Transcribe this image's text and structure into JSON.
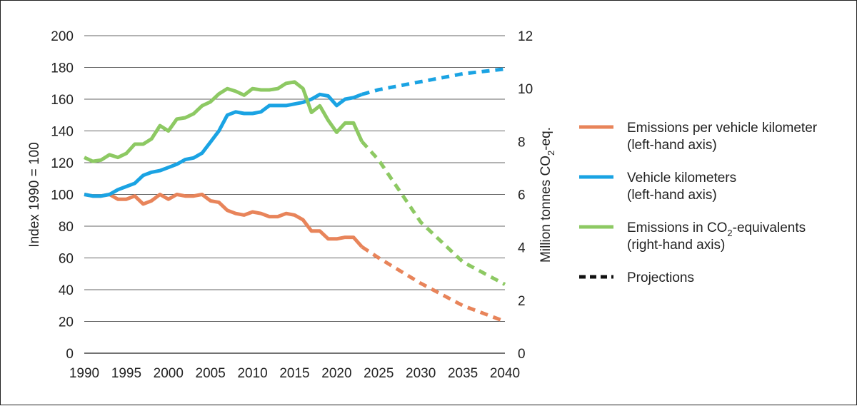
{
  "chart_data": {
    "type": "line",
    "x_axis": {
      "min": 1990,
      "max": 2040,
      "ticks": [
        1990,
        1995,
        2000,
        2005,
        2010,
        2015,
        2020,
        2025,
        2030,
        2035,
        2040
      ]
    },
    "y_left": {
      "label": "Index 1990 = 100",
      "min": 0,
      "max": 200,
      "ticks": [
        0,
        20,
        40,
        60,
        80,
        100,
        120,
        140,
        160,
        180,
        200
      ]
    },
    "y_right": {
      "label": "Million tonnes CO2-eq.",
      "label_parts": [
        "Million tonnes CO",
        "2",
        "-eq."
      ],
      "min": 0,
      "max": 12,
      "ticks": [
        0,
        2,
        4,
        6,
        8,
        10,
        12
      ]
    },
    "grid": "horizontal",
    "series": [
      {
        "id": "emissions_per_km",
        "name": "Emissions per vehicle kilometer (left-hand axis)",
        "axis": "left",
        "color": "#E8845A",
        "historical": [
          [
            1990,
            100
          ],
          [
            1991,
            99
          ],
          [
            1992,
            99
          ],
          [
            1993,
            100
          ],
          [
            1994,
            97
          ],
          [
            1995,
            97
          ],
          [
            1996,
            99
          ],
          [
            1997,
            94
          ],
          [
            1998,
            96
          ],
          [
            1999,
            100
          ],
          [
            2000,
            97
          ],
          [
            2001,
            100
          ],
          [
            2002,
            99
          ],
          [
            2003,
            99
          ],
          [
            2004,
            100
          ],
          [
            2005,
            96
          ],
          [
            2006,
            95
          ],
          [
            2007,
            90
          ],
          [
            2008,
            88
          ],
          [
            2009,
            87
          ],
          [
            2010,
            89
          ],
          [
            2011,
            88
          ],
          [
            2012,
            86
          ],
          [
            2013,
            86
          ],
          [
            2014,
            88
          ],
          [
            2015,
            87
          ],
          [
            2016,
            84
          ],
          [
            2017,
            77
          ],
          [
            2018,
            77
          ],
          [
            2019,
            72
          ],
          [
            2020,
            72
          ],
          [
            2021,
            73
          ],
          [
            2022,
            73
          ],
          [
            2023,
            67
          ]
        ],
        "projection": [
          [
            2023,
            67
          ],
          [
            2025,
            60
          ],
          [
            2030,
            44
          ],
          [
            2035,
            30
          ],
          [
            2040,
            20
          ]
        ]
      },
      {
        "id": "vehicle_km",
        "name": "Vehicle kilometers (left-hand axis)",
        "axis": "left",
        "color": "#1AA3E3",
        "historical": [
          [
            1990,
            100
          ],
          [
            1991,
            99
          ],
          [
            1992,
            99
          ],
          [
            1993,
            100
          ],
          [
            1994,
            103
          ],
          [
            1995,
            105
          ],
          [
            1996,
            107
          ],
          [
            1997,
            112
          ],
          [
            1998,
            114
          ],
          [
            1999,
            115
          ],
          [
            2000,
            117
          ],
          [
            2001,
            119
          ],
          [
            2002,
            122
          ],
          [
            2003,
            123
          ],
          [
            2004,
            126
          ],
          [
            2005,
            133
          ],
          [
            2006,
            140
          ],
          [
            2007,
            150
          ],
          [
            2008,
            152
          ],
          [
            2009,
            151
          ],
          [
            2010,
            151
          ],
          [
            2011,
            152
          ],
          [
            2012,
            156
          ],
          [
            2013,
            156
          ],
          [
            2014,
            156
          ],
          [
            2015,
            157
          ],
          [
            2016,
            158
          ],
          [
            2017,
            160
          ],
          [
            2018,
            163
          ],
          [
            2019,
            162
          ],
          [
            2020,
            156
          ],
          [
            2021,
            160
          ],
          [
            2022,
            161
          ],
          [
            2023,
            163
          ]
        ],
        "projection": [
          [
            2023,
            163
          ],
          [
            2025,
            166
          ],
          [
            2030,
            171
          ],
          [
            2035,
            176
          ],
          [
            2040,
            179
          ]
        ]
      },
      {
        "id": "emissions_co2",
        "name": "Emissions in CO2-equivalents (right-hand axis)",
        "axis": "right",
        "color": "#8DC963",
        "historical": [
          [
            1990,
            7.4
          ],
          [
            1991,
            7.25
          ],
          [
            1992,
            7.3
          ],
          [
            1993,
            7.5
          ],
          [
            1994,
            7.4
          ],
          [
            1995,
            7.55
          ],
          [
            1996,
            7.9
          ],
          [
            1997,
            7.9
          ],
          [
            1998,
            8.1
          ],
          [
            1999,
            8.6
          ],
          [
            2000,
            8.4
          ],
          [
            2001,
            8.85
          ],
          [
            2002,
            8.9
          ],
          [
            2003,
            9.05
          ],
          [
            2004,
            9.35
          ],
          [
            2005,
            9.5
          ],
          [
            2006,
            9.8
          ],
          [
            2007,
            10.0
          ],
          [
            2008,
            9.9
          ],
          [
            2009,
            9.75
          ],
          [
            2010,
            10.0
          ],
          [
            2011,
            9.95
          ],
          [
            2012,
            9.95
          ],
          [
            2013,
            10.0
          ],
          [
            2014,
            10.2
          ],
          [
            2015,
            10.25
          ],
          [
            2016,
            10.0
          ],
          [
            2017,
            9.1
          ],
          [
            2018,
            9.35
          ],
          [
            2019,
            8.8
          ],
          [
            2020,
            8.35
          ],
          [
            2021,
            8.7
          ],
          [
            2022,
            8.7
          ],
          [
            2023,
            8.0
          ]
        ],
        "projection": [
          [
            2023,
            8.0
          ],
          [
            2025,
            7.3
          ],
          [
            2030,
            4.95
          ],
          [
            2035,
            3.45
          ],
          [
            2040,
            2.6
          ]
        ]
      }
    ],
    "legend": {
      "placement": "right",
      "items": [
        {
          "series": "emissions_per_km",
          "line1": "Emissions per vehicle kilometer",
          "line2": "(left-hand axis)",
          "style": "solid",
          "color": "#E8845A"
        },
        {
          "series": "vehicle_km",
          "line1": "Vehicle kilometers",
          "line2": "(left-hand axis)",
          "style": "solid",
          "color": "#1AA3E3"
        },
        {
          "series": "emissions_co2",
          "line1_parts": [
            "Emissions in CO",
            "2",
            "-equivalents"
          ],
          "line2": "(right-hand axis)",
          "style": "solid",
          "color": "#8DC963"
        },
        {
          "series": "projections",
          "line1": "Projections",
          "style": "dashed",
          "color": "#111111"
        }
      ]
    }
  }
}
